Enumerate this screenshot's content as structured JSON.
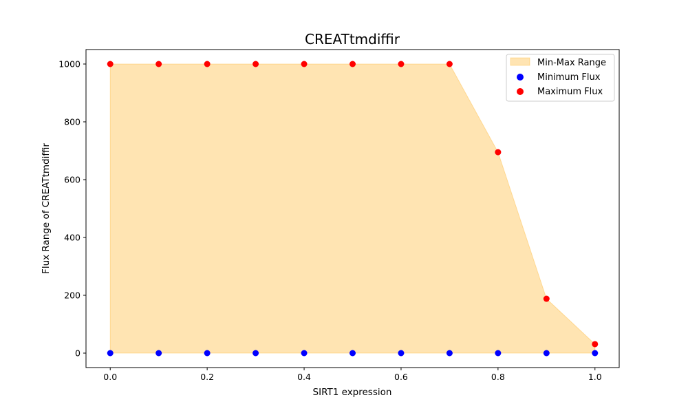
{
  "chart_data": {
    "type": "area",
    "title": "CREATtmdiffir",
    "xlabel": "SIRT1 expression",
    "ylabel": "Flux Range of CREATtmdiffir",
    "xlim": [
      -0.05,
      1.05
    ],
    "ylim": [
      -50,
      1050
    ],
    "x_ticks": [
      "0.0",
      "0.2",
      "0.4",
      "0.6",
      "0.8",
      "1.0"
    ],
    "y_ticks": [
      "0",
      "200",
      "400",
      "600",
      "800",
      "1000"
    ],
    "x": [
      0.0,
      0.1,
      0.2,
      0.3,
      0.4,
      0.5,
      0.6,
      0.7,
      0.8,
      0.9,
      1.0
    ],
    "series": [
      {
        "name": "Minimum Flux",
        "color": "#0000ff",
        "values": [
          0,
          0,
          0,
          0,
          0,
          0,
          0,
          0,
          0,
          0,
          0
        ]
      },
      {
        "name": "Maximum Flux",
        "color": "#ff0000",
        "values": [
          1000,
          1000,
          1000,
          1000,
          1000,
          1000,
          1000,
          1000,
          695,
          188,
          31
        ]
      }
    ],
    "fill": {
      "name": "Min-Max Range",
      "color": "#ffa500",
      "opacity": 0.3
    },
    "legend": {
      "placement": "top-right",
      "entries": [
        "Min-Max Range",
        "Minimum Flux",
        "Maximum Flux"
      ]
    },
    "grid": false
  }
}
